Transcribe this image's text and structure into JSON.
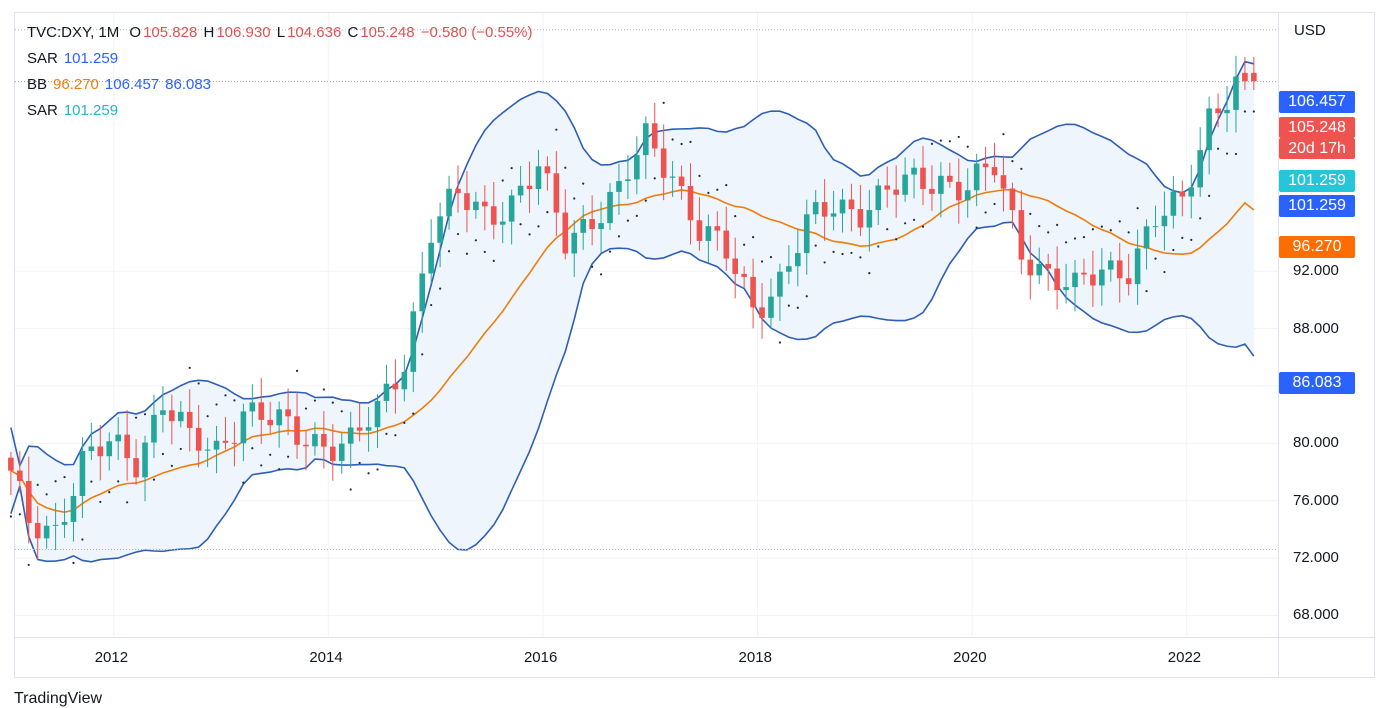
{
  "legend": {
    "symbol": "TVC:DXY, 1M",
    "open_label": "O",
    "open": "105.828",
    "high_label": "H",
    "high": "106.930",
    "low_label": "L",
    "low": "104.636",
    "close_label": "C",
    "close": "105.248",
    "change": "−0.580 (−0.55%)",
    "sar1_label": "SAR",
    "sar1_value": "101.259",
    "bb_label": "BB",
    "bb_basis": "96.270",
    "bb_upper": "106.457",
    "bb_lower": "86.083",
    "sar2_label": "SAR",
    "sar2_value": "101.259"
  },
  "price_axis": {
    "unit": "USD",
    "ticks": [
      "92.000",
      "88.000",
      "84.000",
      "80.000",
      "76.000",
      "72.000",
      "68.000"
    ]
  },
  "time_axis": {
    "ticks": [
      "2012",
      "2014",
      "2016",
      "2018",
      "2020",
      "2022"
    ]
  },
  "tags": {
    "bb_upper": "106.457",
    "close": "105.248",
    "countdown": "20d 17h",
    "sar_cyan": "101.259",
    "sar_blue": "101.259",
    "bb_basis": "96.270",
    "bb_lower": "86.083"
  },
  "brand": "TradingView",
  "colors": {
    "up": "#26a69a",
    "down": "#ef5350",
    "band": "#2e5fb5",
    "basis": "#ef7d0d",
    "fill": "#eef5fc",
    "tag_blue": "#2962ff",
    "tag_red": "#ef5350",
    "tag_cyan": "#26c6da",
    "tag_orange": "#ff6d00"
  },
  "chart_data": {
    "type": "candlestick",
    "symbol": "TVC:DXY",
    "interval": "1M",
    "y_unit": "USD",
    "ylim": [
      66.5,
      110
    ],
    "xlim": [
      2011.08,
      2022.85
    ],
    "yticks": [
      68,
      72,
      76,
      80,
      84,
      88,
      92
    ],
    "xticks": [
      2012,
      2014,
      2016,
      2018,
      2020,
      2022
    ],
    "grid": true,
    "last": {
      "open": 105.828,
      "high": 106.93,
      "low": 104.636,
      "close": 105.248,
      "change": -0.58,
      "change_pct": -0.55
    },
    "indicators": {
      "bollinger": {
        "basis": 96.27,
        "upper": 106.457,
        "lower": 86.083
      },
      "sar": 101.259
    },
    "close_monthly": [
      {
        "t": 2011.0,
        "c": 79.0
      },
      {
        "t": 2011.25,
        "c": 74.5
      },
      {
        "t": 2011.5,
        "c": 74.2
      },
      {
        "t": 2011.75,
        "c": 78.5
      },
      {
        "t": 2012.0,
        "c": 79.8
      },
      {
        "t": 2012.25,
        "c": 79.0
      },
      {
        "t": 2012.5,
        "c": 83.0
      },
      {
        "t": 2012.75,
        "c": 80.0
      },
      {
        "t": 2013.0,
        "c": 79.5
      },
      {
        "t": 2013.25,
        "c": 82.5
      },
      {
        "t": 2013.5,
        "c": 81.5
      },
      {
        "t": 2013.75,
        "c": 80.5
      },
      {
        "t": 2014.0,
        "c": 80.2
      },
      {
        "t": 2014.25,
        "c": 80.0
      },
      {
        "t": 2014.5,
        "c": 82.0
      },
      {
        "t": 2014.75,
        "c": 86.0
      },
      {
        "t": 2015.0,
        "c": 95.0
      },
      {
        "t": 2015.25,
        "c": 97.0
      },
      {
        "t": 2015.5,
        "c": 96.0
      },
      {
        "t": 2015.75,
        "c": 97.0
      },
      {
        "t": 2016.0,
        "c": 99.0
      },
      {
        "t": 2016.25,
        "c": 94.0
      },
      {
        "t": 2016.5,
        "c": 96.0
      },
      {
        "t": 2016.75,
        "c": 97.5
      },
      {
        "t": 2017.0,
        "c": 101.0
      },
      {
        "t": 2017.25,
        "c": 99.0
      },
      {
        "t": 2017.5,
        "c": 95.0
      },
      {
        "t": 2017.75,
        "c": 93.0
      },
      {
        "t": 2018.0,
        "c": 89.5
      },
      {
        "t": 2018.25,
        "c": 91.5
      },
      {
        "t": 2018.5,
        "c": 95.0
      },
      {
        "t": 2018.75,
        "c": 96.5
      },
      {
        "t": 2019.0,
        "c": 96.5
      },
      {
        "t": 2019.25,
        "c": 97.5
      },
      {
        "t": 2019.5,
        "c": 98.0
      },
      {
        "t": 2019.75,
        "c": 98.5
      },
      {
        "t": 2020.0,
        "c": 98.0
      },
      {
        "t": 2020.25,
        "c": 99.0
      },
      {
        "t": 2020.5,
        "c": 93.5
      },
      {
        "t": 2020.75,
        "c": 92.0
      },
      {
        "t": 2021.0,
        "c": 90.5
      },
      {
        "t": 2021.25,
        "c": 92.0
      },
      {
        "t": 2021.5,
        "c": 92.5
      },
      {
        "t": 2021.75,
        "c": 95.5
      },
      {
        "t": 2022.0,
        "c": 96.5
      },
      {
        "t": 2022.25,
        "c": 103.0
      },
      {
        "t": 2022.5,
        "c": 105.248
      }
    ]
  }
}
